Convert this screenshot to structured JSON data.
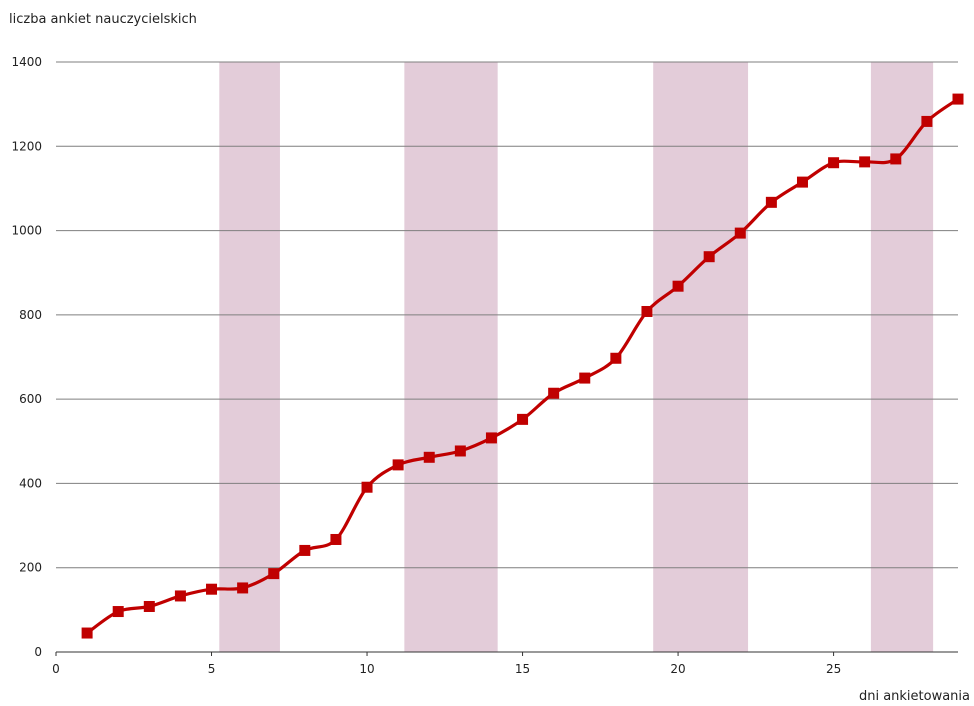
{
  "chart_data": {
    "type": "line",
    "title": "",
    "ylabel": "liczba ankiet nauczycielskich",
    "xlabel": "dni ankietowania",
    "xlim": [
      0,
      29
    ],
    "ylim": [
      0,
      1400
    ],
    "x_ticks": [
      0,
      5,
      10,
      15,
      20,
      25
    ],
    "y_ticks": [
      0,
      200,
      400,
      600,
      800,
      1000,
      1200,
      1400
    ],
    "grid": true,
    "shaded_ranges": [
      [
        5.25,
        7.2
      ],
      [
        11.2,
        14.2
      ],
      [
        19.2,
        22.25
      ],
      [
        26.2,
        28.2
      ]
    ],
    "series": [
      {
        "color": "#c00000",
        "marker": "square",
        "x": [
          1,
          2,
          3,
          4,
          5,
          6,
          7,
          8,
          9,
          10,
          11,
          12,
          13,
          14,
          15,
          16,
          17,
          18,
          19,
          20,
          21,
          22,
          23,
          24,
          25,
          26,
          27,
          28,
          29
        ],
        "values": [
          45,
          96,
          108,
          133,
          149,
          152,
          186,
          241,
          267,
          391,
          444,
          462,
          477,
          508,
          552,
          614,
          650,
          697,
          808,
          868,
          938,
          994,
          1067,
          1115,
          1161,
          1163,
          1170,
          1259,
          1312
        ]
      }
    ],
    "shade_color": "#e3ccd9",
    "grid_color": "#7f7f7f"
  }
}
